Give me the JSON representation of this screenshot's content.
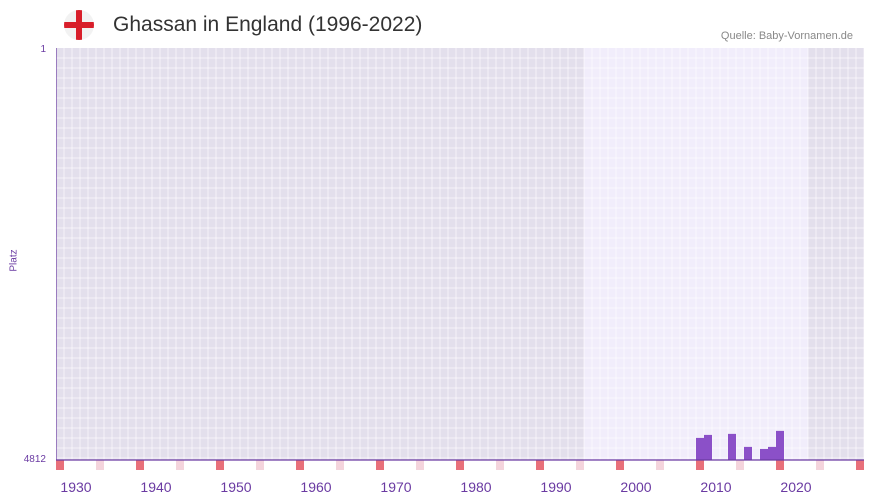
{
  "header": {
    "title": "Ghassan in England (1996-2022)",
    "source": "Quelle: Baby-Vornamen.de",
    "flag_icon": "england-flag-icon"
  },
  "chart_data": {
    "type": "bar",
    "title": "Ghassan in England (1996-2022)",
    "ylabel": "Platz",
    "xlabel": "",
    "ylim": [
      4812,
      1
    ],
    "y_ticks": [
      "1",
      "4812"
    ],
    "x_range": [
      1928,
      2028
    ],
    "x_ticks": [
      1930,
      1940,
      1950,
      1960,
      1970,
      1980,
      1990,
      2000,
      2010,
      2020
    ],
    "highlight_range": [
      1994,
      2021
    ],
    "x": [
      2008,
      2009,
      2012,
      2014,
      2016,
      2017,
      2018
    ],
    "values": [
      4554,
      4519,
      4507,
      4659,
      4683,
      4659,
      4472
    ],
    "colors": {
      "bar": "#8b50c8",
      "axis": "#6a3aa2",
      "bg_dark": "#e3dfec",
      "bg_light": "#f1edfb",
      "marker_red": "#e8707a",
      "marker_pink": "#f4d4dc"
    }
  }
}
